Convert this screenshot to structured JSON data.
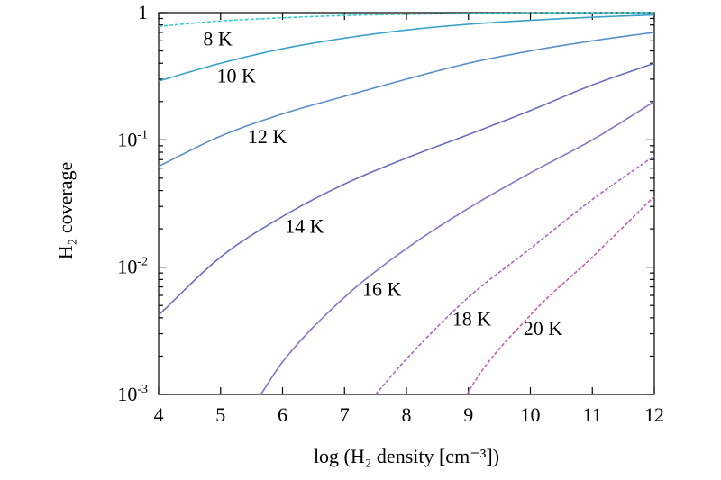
{
  "chart_data": {
    "type": "line",
    "title": "",
    "xlabel": "log (H₂ density [cm⁻³])",
    "ylabel": "H₂ coverage",
    "xlim": [
      4,
      12
    ],
    "ylim": [
      0.001,
      1
    ],
    "yscale": "log",
    "grid": false,
    "x_ticks": [
      "4",
      "5",
      "6",
      "7",
      "8",
      "9",
      "10",
      "11",
      "12"
    ],
    "x_tick_values": [
      4,
      5,
      6,
      7,
      8,
      9,
      10,
      11,
      12
    ],
    "y_ticks": [
      {
        "value": 1,
        "base": "1",
        "exp": ""
      },
      {
        "value": 0.1,
        "base": "10",
        "exp": "-1"
      },
      {
        "value": 0.01,
        "base": "10",
        "exp": "-2"
      },
      {
        "value": 0.001,
        "base": "10",
        "exp": "-3"
      }
    ],
    "series": [
      {
        "label": "8 K",
        "color": "#33cccc",
        "dashed": true,
        "x": [
          4,
          5,
          6,
          7,
          8,
          9,
          10,
          11,
          12
        ],
        "y": [
          0.78,
          0.86,
          0.91,
          0.95,
          0.97,
          0.985,
          0.993,
          0.997,
          1.0
        ]
      },
      {
        "label": "10 K",
        "color": "#3aa0cc",
        "dashed": false,
        "x": [
          4,
          5,
          6,
          7,
          8,
          9,
          10,
          11,
          12
        ],
        "y": [
          0.29,
          0.4,
          0.52,
          0.63,
          0.73,
          0.81,
          0.87,
          0.92,
          0.96
        ]
      },
      {
        "label": "12 K",
        "color": "#5a8fc8",
        "dashed": false,
        "x": [
          4,
          5,
          6,
          7,
          8,
          9,
          10,
          11,
          12
        ],
        "y": [
          0.062,
          0.107,
          0.16,
          0.22,
          0.3,
          0.4,
          0.5,
          0.6,
          0.7
        ]
      },
      {
        "label": "14 K",
        "color": "#6a6ec0",
        "dashed": false,
        "x": [
          4,
          5,
          6,
          7,
          8,
          9,
          10,
          11,
          12
        ],
        "y": [
          0.0042,
          0.012,
          0.025,
          0.045,
          0.072,
          0.11,
          0.17,
          0.27,
          0.4
        ]
      },
      {
        "label": "16 K",
        "color": "#8a74c8",
        "dashed": false,
        "x": [
          5.65,
          6,
          7,
          8,
          9,
          10,
          11,
          12
        ],
        "y": [
          0.001,
          0.0018,
          0.0058,
          0.014,
          0.029,
          0.055,
          0.1,
          0.2
        ]
      },
      {
        "label": "18 K",
        "color": "#aa66c0",
        "dashed": true,
        "x": [
          7.5,
          8,
          9,
          10,
          11,
          12
        ],
        "y": [
          0.001,
          0.0019,
          0.0058,
          0.014,
          0.034,
          0.075
        ]
      },
      {
        "label": "20 K",
        "color": "#c060b0",
        "dashed": true,
        "x": [
          8.98,
          9,
          10,
          11,
          12
        ],
        "y": [
          0.001,
          0.00105,
          0.0042,
          0.012,
          0.036
        ]
      }
    ]
  }
}
